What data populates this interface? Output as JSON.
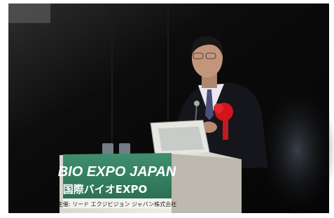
{
  "podium": {
    "title": "BIO EXPO JAPAN",
    "subtitle": "国際バイオEXPO",
    "organizer": "主催: リード エクジビジョン ジャパン株式会社"
  }
}
